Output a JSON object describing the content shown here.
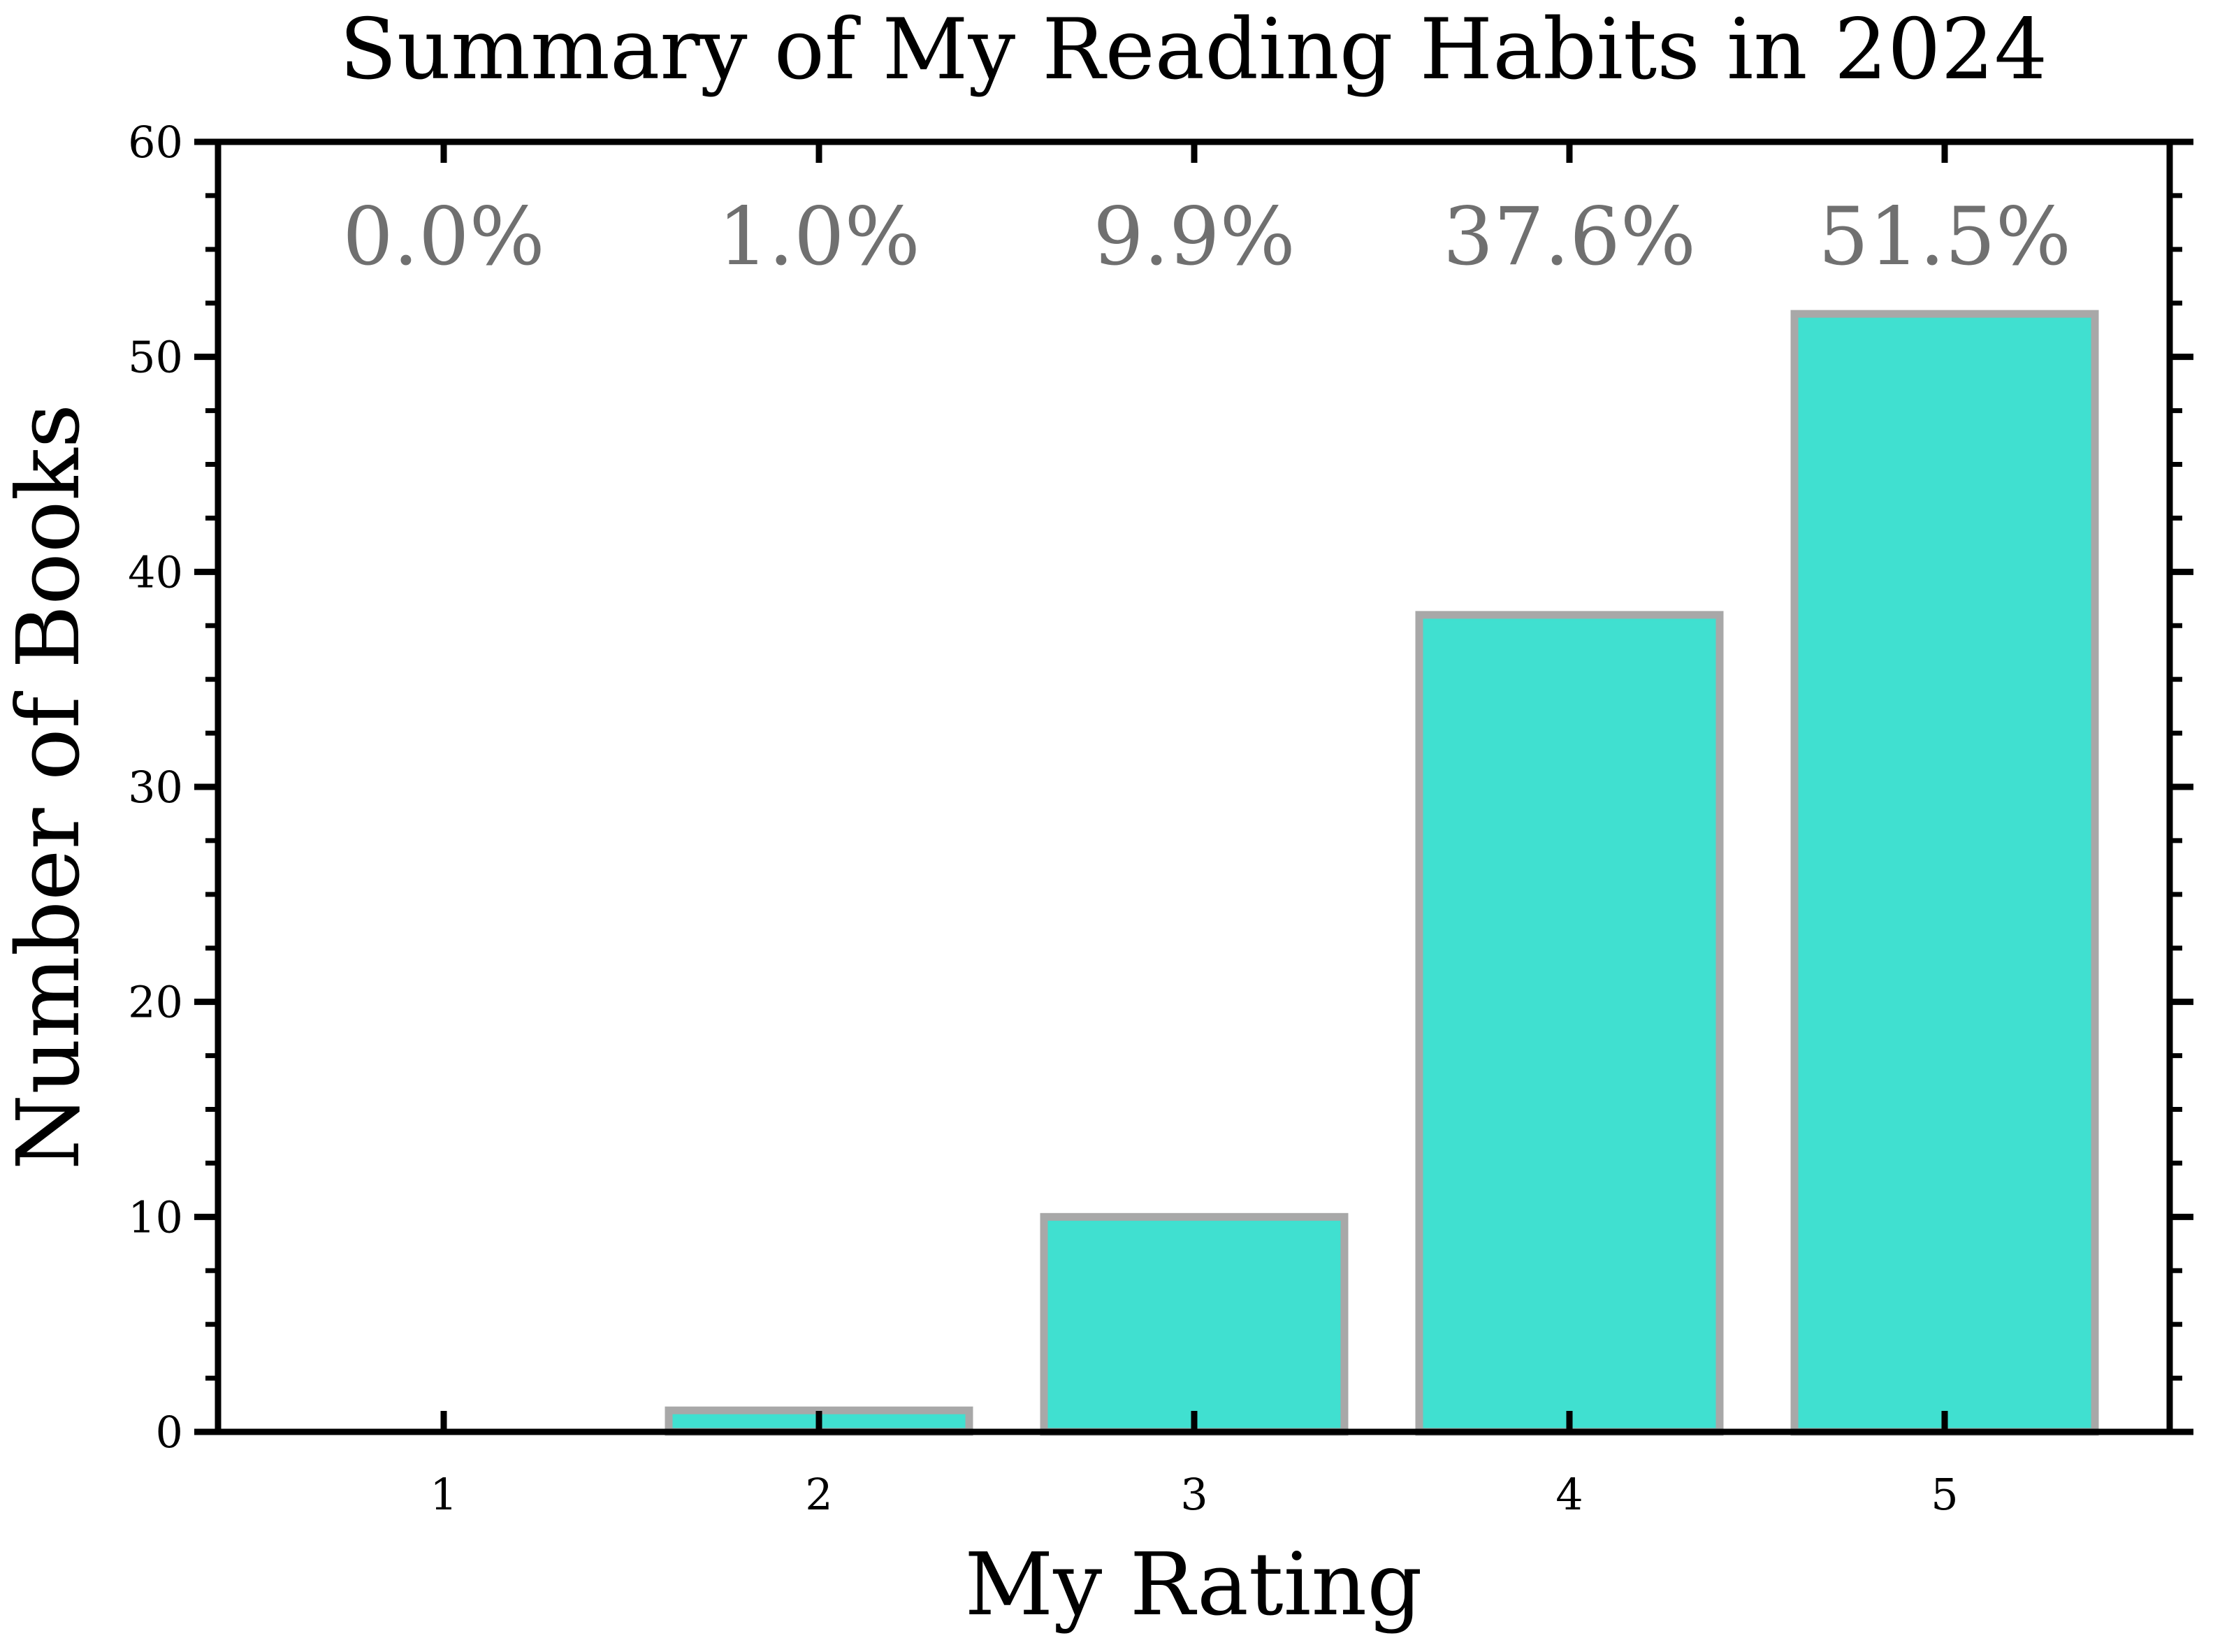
{
  "chart_data": {
    "type": "bar",
    "title": "Summary of My Reading Habits in 2024",
    "xlabel": "My Rating",
    "ylabel": "Number of Books",
    "categories": [
      "1",
      "2",
      "3",
      "4",
      "5"
    ],
    "values": [
      0,
      1,
      10,
      38,
      52
    ],
    "bar_labels": [
      "0.0%",
      "1.0%",
      "9.9%",
      "37.6%",
      "51.5%"
    ],
    "ylim": [
      0,
      60
    ],
    "yticks": [
      "0",
      "10",
      "20",
      "30",
      "40",
      "50",
      "60"
    ],
    "grid": false,
    "bar_color": "#40E0D0",
    "bar_edge_color": "#A8A8A8",
    "label_color": "#707070"
  }
}
